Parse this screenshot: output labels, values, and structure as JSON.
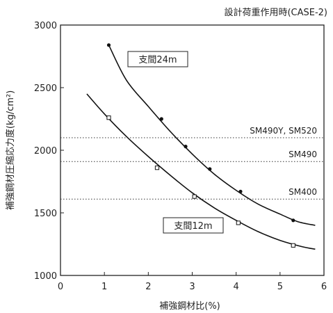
{
  "chart_data": {
    "type": "line",
    "title": "設計荷重作用時(CASE-2)",
    "xlabel": "補強鋼材比(%)",
    "ylabel": "補強鋼材圧縮応力度(kg/cm²)",
    "xlim": [
      0,
      6
    ],
    "ylim": [
      1000,
      3000
    ],
    "x_ticks": [
      "0",
      "1",
      "2",
      "3",
      "4",
      "5",
      "6"
    ],
    "y_ticks": [
      "1000",
      "1500",
      "2000",
      "2500",
      "3000"
    ],
    "grid": false,
    "reference_lines": [
      {
        "label": "SM490Y, SM520",
        "y": 2100
      },
      {
        "label": "SM490",
        "y": 1910
      },
      {
        "label": "SM400",
        "y": 1610
      }
    ],
    "series": [
      {
        "name": "支間24m",
        "marker": "filled-circle",
        "points": [
          [
            1.1,
            2840
          ],
          [
            2.3,
            2250
          ],
          [
            2.85,
            2030
          ],
          [
            3.4,
            1850
          ],
          [
            4.1,
            1670
          ],
          [
            5.3,
            1440
          ]
        ],
        "curve": [
          [
            1.1,
            2840
          ],
          [
            1.5,
            2560
          ],
          [
            2.0,
            2350
          ],
          [
            2.5,
            2150
          ],
          [
            3.0,
            1970
          ],
          [
            3.5,
            1810
          ],
          [
            4.0,
            1680
          ],
          [
            4.5,
            1570
          ],
          [
            5.0,
            1490
          ],
          [
            5.4,
            1430
          ],
          [
            5.8,
            1400
          ]
        ]
      },
      {
        "name": "支間12m",
        "marker": "open-square",
        "points": [
          [
            1.1,
            2260
          ],
          [
            2.2,
            1860
          ],
          [
            3.05,
            1630
          ],
          [
            4.05,
            1420
          ],
          [
            5.3,
            1240
          ]
        ],
        "curve": [
          [
            0.6,
            2450
          ],
          [
            1.0,
            2290
          ],
          [
            1.5,
            2110
          ],
          [
            2.0,
            1950
          ],
          [
            2.5,
            1800
          ],
          [
            3.0,
            1660
          ],
          [
            3.5,
            1540
          ],
          [
            4.0,
            1440
          ],
          [
            4.5,
            1350
          ],
          [
            5.0,
            1280
          ],
          [
            5.5,
            1230
          ],
          [
            5.8,
            1210
          ]
        ]
      }
    ]
  }
}
